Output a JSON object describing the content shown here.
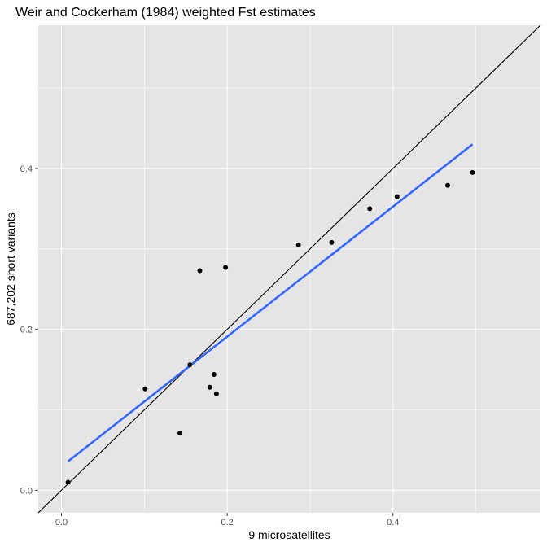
{
  "chart_data": {
    "type": "scatter",
    "title": "Weir and Cockerham (1984) weighted Fst estimates",
    "xlabel": "9 microsatellites",
    "ylabel": "687,202 short variants",
    "xlim": [
      -0.028,
      0.578
    ],
    "ylim": [
      -0.028,
      0.578
    ],
    "xticks": [
      0.0,
      0.2,
      0.4
    ],
    "xtick_labels": [
      "0.0",
      "0.2",
      "0.4"
    ],
    "yticks": [
      0.0,
      0.2,
      0.4
    ],
    "ytick_labels": [
      "0.0",
      "0.2",
      "0.4"
    ],
    "x_minor_gridlines": [
      0.1,
      0.3,
      0.5
    ],
    "y_minor_gridlines": [
      0.1,
      0.3,
      0.5
    ],
    "grid": true,
    "panel_background": "#e5e5e5",
    "points": {
      "color": "#000000",
      "x": [
        0.008,
        0.101,
        0.143,
        0.155,
        0.167,
        0.179,
        0.184,
        0.187,
        0.198,
        0.286,
        0.326,
        0.372,
        0.405,
        0.466,
        0.496
      ],
      "y": [
        0.01,
        0.126,
        0.071,
        0.156,
        0.273,
        0.128,
        0.144,
        0.12,
        0.277,
        0.305,
        0.308,
        0.35,
        0.365,
        0.379,
        0.395
      ]
    },
    "identity_line": {
      "color": "#000000",
      "slope": 1,
      "intercept": 0
    },
    "fit_line": {
      "color": "#3366ff",
      "x": [
        0.008,
        0.496
      ],
      "y": [
        0.036,
        0.43
      ]
    }
  }
}
